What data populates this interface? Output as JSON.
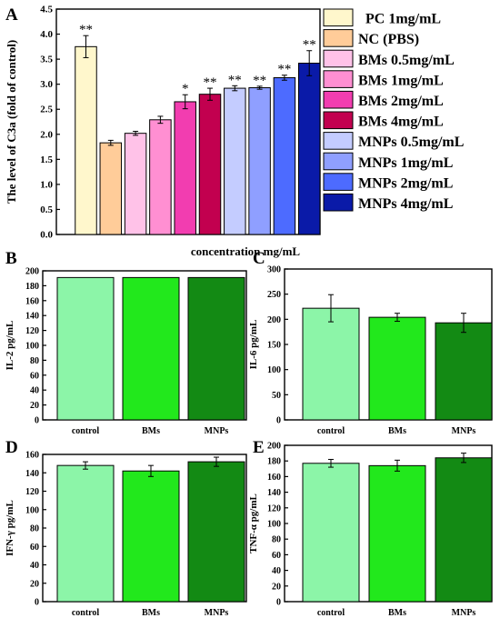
{
  "chart_data": [
    {
      "panel": "A",
      "type": "bar",
      "ylabel": "The level of C3a (fold of control)",
      "xlabel": "concentration mg/mL",
      "ylim": [
        0,
        4.5
      ],
      "yticks": [
        "0.0",
        "0.5",
        "1.0",
        "1.5",
        "2.0",
        "2.5",
        "3.0",
        "3.5",
        "4.0",
        "4.5"
      ],
      "categories": [
        "PC 1mg/mL",
        "NC (PBS)",
        "BMs 0.5mg/mL",
        "BMs 1mg/mL",
        "BMs 2mg/mL",
        "BMs 4mg/mL",
        "MNPs 0.5mg/mL",
        "MNPs 1mg/mL",
        "MNPs 2mg/mL",
        "MNPs 4mg/mL"
      ],
      "values": [
        3.75,
        1.83,
        2.02,
        2.29,
        2.65,
        2.8,
        2.92,
        2.93,
        3.13,
        3.42
      ],
      "errors": [
        0.22,
        0.05,
        0.04,
        0.07,
        0.14,
        0.12,
        0.05,
        0.03,
        0.05,
        0.25
      ],
      "significance": [
        "**",
        "",
        "",
        "",
        "*",
        "**",
        "**",
        "**",
        "**",
        "**"
      ],
      "colors": [
        "#FFF7CC",
        "#FFCC99",
        "#FFC2E8",
        "#FF8FD2",
        "#F23DB0",
        "#C2004F",
        "#C4CCFF",
        "#8F9FFF",
        "#4D6BFF",
        "#0A1AA8"
      ],
      "legend": "right"
    },
    {
      "panel": "B",
      "type": "bar",
      "ylabel": "IL-2 pg/mL",
      "ylim": [
        0,
        200
      ],
      "yticks": [
        "0",
        "20",
        "40",
        "60",
        "80",
        "100",
        "120",
        "140",
        "160",
        "180",
        "200"
      ],
      "categories": [
        "control",
        "BMs",
        "MNPs"
      ],
      "values": [
        191,
        191,
        191
      ],
      "errors": [
        0,
        0,
        0
      ],
      "colors": [
        "#8CF5A8",
        "#22E81C",
        "#138A14"
      ]
    },
    {
      "panel": "C",
      "type": "bar",
      "ylabel": "IL-6 pg/mL",
      "ylim": [
        0,
        300
      ],
      "yticks": [
        "0",
        "50",
        "100",
        "150",
        "200",
        "250",
        "300"
      ],
      "categories": [
        "control",
        "BMs",
        "MNPs"
      ],
      "values": [
        222,
        204,
        193
      ],
      "errors": [
        27,
        8,
        19
      ],
      "colors": [
        "#8CF5A8",
        "#22E81C",
        "#138A14"
      ]
    },
    {
      "panel": "D",
      "type": "bar",
      "ylabel": "IFN-γ pg/mL",
      "ylim": [
        0,
        160
      ],
      "yticks": [
        "0",
        "20",
        "40",
        "60",
        "80",
        "100",
        "120",
        "140",
        "160"
      ],
      "categories": [
        "control",
        "BMs",
        "MNPs"
      ],
      "values": [
        148,
        142,
        152
      ],
      "errors": [
        4,
        6,
        5
      ],
      "colors": [
        "#8CF5A8",
        "#22E81C",
        "#138A14"
      ]
    },
    {
      "panel": "E",
      "type": "bar",
      "ylabel": "TNF-α pg/mL",
      "ylim": [
        0,
        200
      ],
      "yticks": [
        "0",
        "20",
        "40",
        "60",
        "80",
        "100",
        "120",
        "140",
        "160",
        "180",
        "200"
      ],
      "categories": [
        "control",
        "BMs",
        "MNPs"
      ],
      "values": [
        177,
        174,
        184
      ],
      "errors": [
        5,
        7,
        6
      ],
      "colors": [
        "#8CF5A8",
        "#22E81C",
        "#138A14"
      ]
    }
  ]
}
